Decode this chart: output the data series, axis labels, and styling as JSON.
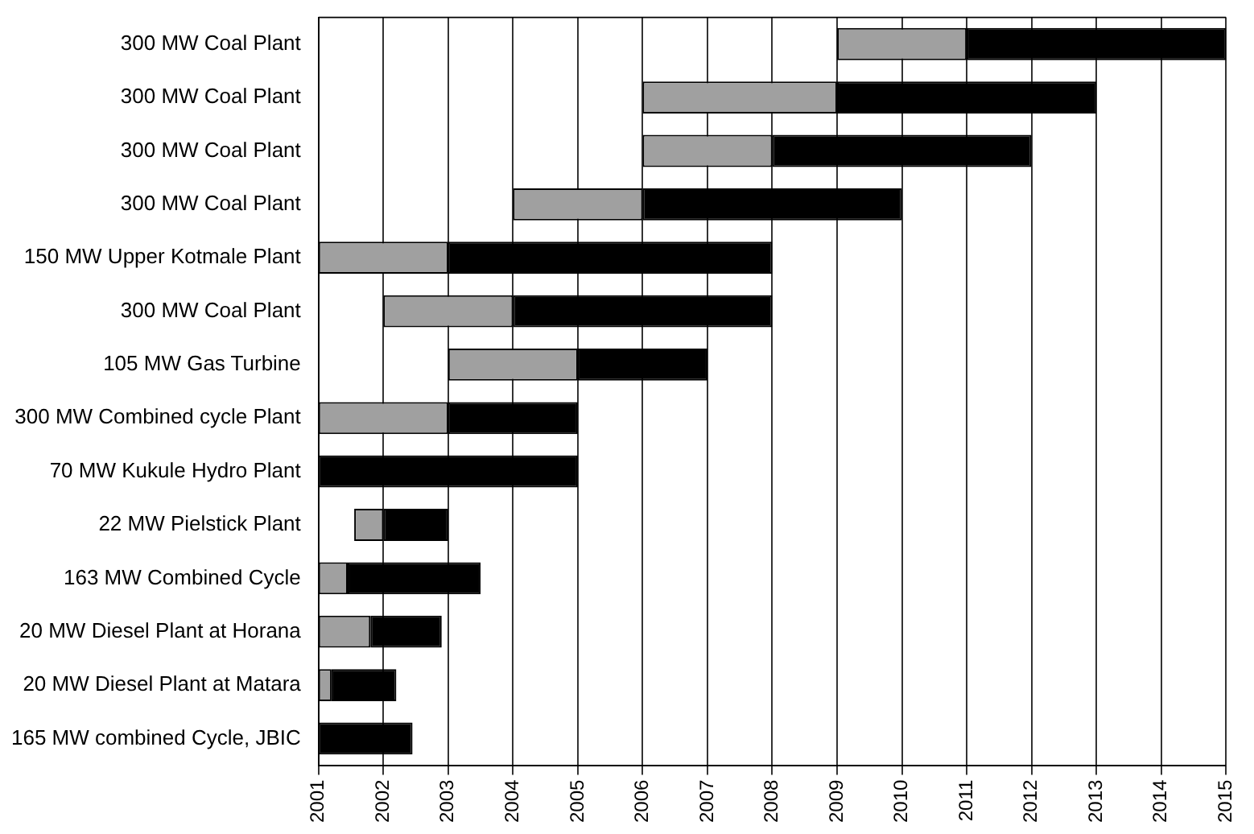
{
  "chart_data": {
    "type": "bar",
    "orientation": "horizontal",
    "categories": [
      "300 MW Coal Plant",
      "300 MW Coal Plant",
      "300 MW Coal Plant",
      "300 MW Coal Plant",
      "150 MW Upper Kotmale Plant",
      "300 MW Coal Plant",
      "105 MW Gas Turbine",
      "300 MW Combined cycle Plant",
      "70 MW Kukule Hydro Plant",
      "22 MW Pielstick Plant",
      "163 MW Combined Cycle",
      "20 MW Diesel Plant at Horana",
      "20 MW Diesel Plant at Matara",
      "165 MW combined Cycle, JBIC"
    ],
    "series": [
      {
        "color": "#a0a0a0",
        "base": [
          2009,
          2006,
          2006,
          2004,
          2001,
          2002,
          2003,
          2001,
          null,
          2001.55,
          2001,
          2001,
          2001,
          null
        ],
        "values": [
          2,
          3,
          2,
          2,
          2,
          2,
          2,
          2,
          null,
          0.45,
          0.45,
          0.8,
          0.2,
          null
        ]
      },
      {
        "color": "#000000",
        "base": [
          2011,
          2009,
          2008,
          2006,
          2003,
          2004,
          2005,
          2003,
          2001,
          2002,
          2001.45,
          2001.8,
          2001.2,
          2001
        ],
        "values": [
          4,
          4,
          4,
          4,
          5,
          4,
          2,
          2,
          4,
          1,
          2.05,
          1.1,
          1,
          1.45
        ]
      }
    ],
    "xlim": [
      2001,
      2015
    ],
    "xticks": [
      2001,
      2002,
      2003,
      2004,
      2005,
      2006,
      2007,
      2008,
      2009,
      2010,
      2011,
      2012,
      2013,
      2014,
      2015
    ],
    "grid": "x",
    "legend": false
  }
}
